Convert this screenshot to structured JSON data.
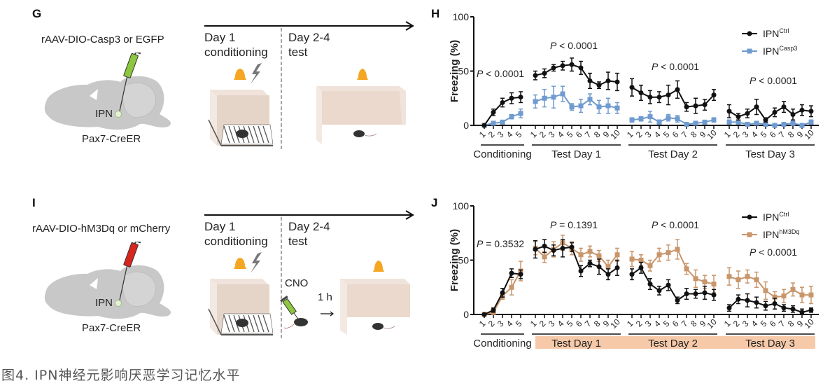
{
  "panels": {
    "G": {
      "letter": "G",
      "virus": "rAAV-DIO-Casp3 or EGFP",
      "target": "IPN",
      "mouse_line": "Pax7-CreER",
      "syringe_color": "#8dc63f",
      "day1_line1": "Day 1",
      "day1_line2": "conditioning",
      "day2_line1": "Day 2-4",
      "day2_line2": "test"
    },
    "I": {
      "letter": "I",
      "virus": "rAAV-DIO-hM3Dq or mCherry",
      "target": "IPN",
      "mouse_line": "Pax7-CreER",
      "syringe_color": "#d7261e",
      "day1_line1": "Day 1",
      "day1_line2": "conditioning",
      "day2_line1": "Day 2-4",
      "day2_line2": "test",
      "drug": "CNO",
      "delay": "1 h"
    },
    "H": {
      "letter": "H"
    },
    "J": {
      "letter": "J"
    }
  },
  "chart_data": [
    {
      "id": "H",
      "type": "line",
      "ylabel": "Freezing (%)",
      "ylim": [
        0,
        100
      ],
      "yticks": [
        "0",
        "50",
        "100"
      ],
      "groups": [
        {
          "name": "Conditioning",
          "ticks": [
            "1",
            "2",
            "3",
            "4",
            "5"
          ],
          "p": "P < 0.0001"
        },
        {
          "name": "Test Day 1",
          "ticks": [
            "1",
            "2",
            "3",
            "4",
            "5",
            "6",
            "7",
            "8",
            "9",
            "10"
          ],
          "p": "P < 0.0001"
        },
        {
          "name": "Test Day 2",
          "ticks": [
            "1",
            "2",
            "3",
            "4",
            "5",
            "6",
            "7",
            "8",
            "9",
            "10"
          ],
          "p": "P < 0.0001"
        },
        {
          "name": "Test Day 3",
          "ticks": [
            "1",
            "2",
            "3",
            "4",
            "5",
            "6",
            "7",
            "8",
            "9",
            "10"
          ],
          "p": "P < 0.0001"
        }
      ],
      "highlight_test_days": false,
      "legend": {
        "position": "top-right"
      },
      "series": [
        {
          "name": "IPN",
          "sup": "Ctrl",
          "color": "#111111",
          "marker": "circle",
          "values": [
            [
              0,
              12,
              21,
              25,
              26
            ],
            [
              46,
              48,
              53,
              55,
              56,
              53,
              41,
              37,
              41,
              40
            ],
            [
              35,
              30,
              26,
              26,
              28,
              33,
              17,
              18,
              19,
              28
            ],
            [
              13,
              8,
              11,
              17,
              5,
              12,
              17,
              10,
              14,
              13
            ]
          ],
          "errors": [
            [
              0,
              3,
              4,
              5,
              5
            ],
            [
              4,
              4,
              3,
              4,
              6,
              6,
              7,
              3,
              8,
              8
            ],
            [
              8,
              7,
              6,
              5,
              9,
              8,
              4,
              7,
              5,
              5
            ],
            [
              6,
              3,
              4,
              7,
              2,
              4,
              5,
              5,
              5,
              5
            ]
          ]
        },
        {
          "name": "IPN",
          "sup": "Casp3",
          "color": "#6f9bcf",
          "marker": "square",
          "values": [
            [
              0,
              2,
              3,
              8,
              11
            ],
            [
              22,
              25,
              26,
              29,
              17,
              18,
              24,
              17,
              18,
              16
            ],
            [
              5,
              6,
              8,
              3,
              7,
              6,
              1,
              2,
              3,
              5
            ],
            [
              3,
              3,
              1,
              2,
              1,
              0,
              1,
              2,
              0,
              3
            ]
          ],
          "errors": [
            [
              0,
              1,
              1,
              2,
              4
            ],
            [
              6,
              8,
              10,
              7,
              3,
              6,
              5,
              6,
              7,
              5
            ],
            [
              2,
              2,
              5,
              2,
              3,
              3,
              1,
              1,
              1,
              2
            ],
            [
              2,
              2,
              1,
              1,
              1,
              1,
              1,
              2,
              1,
              2
            ]
          ]
        }
      ]
    },
    {
      "id": "J",
      "type": "line",
      "ylabel": "Freezing (%)",
      "ylim": [
        0,
        100
      ],
      "yticks": [
        "0",
        "50",
        "100"
      ],
      "groups": [
        {
          "name": "Conditioning",
          "ticks": [
            "1",
            "2",
            "3",
            "4",
            "5"
          ],
          "p": "P = 0.3532"
        },
        {
          "name": "Test Day 1",
          "ticks": [
            "1",
            "2",
            "3",
            "4",
            "5",
            "6",
            "7",
            "8",
            "9",
            "10"
          ],
          "p": "P = 0.1391"
        },
        {
          "name": "Test Day 2",
          "ticks": [
            "1",
            "2",
            "3",
            "4",
            "5",
            "6",
            "7",
            "8",
            "9",
            "10"
          ],
          "p": "P < 0.0001"
        },
        {
          "name": "Test Day 3",
          "ticks": [
            "1",
            "2",
            "3",
            "4",
            "5",
            "6",
            "7",
            "8",
            "9",
            "10"
          ],
          "p": "P < 0.0001"
        }
      ],
      "highlight_test_days": true,
      "highlight_color": "#f6c9a8",
      "legend": {
        "position": "top-right"
      },
      "series": [
        {
          "name": "IPN",
          "sup": "Ctrl",
          "color": "#111111",
          "marker": "circle",
          "values": [
            [
              0,
              4,
              20,
              38,
              37
            ],
            [
              60,
              63,
              59,
              61,
              62,
              40,
              47,
              44,
              37,
              43
            ],
            [
              37,
              43,
              28,
              22,
              27,
              13,
              19,
              19,
              20,
              18
            ],
            [
              6,
              14,
              13,
              11,
              8,
              10,
              6,
              5,
              2,
              4
            ]
          ],
          "errors": [
            [
              0,
              2,
              4,
              4,
              4
            ],
            [
              8,
              6,
              5,
              8,
              4,
              5,
              3,
              7,
              5,
              7
            ],
            [
              5,
              5,
              5,
              4,
              5,
              3,
              5,
              4,
              6,
              5
            ],
            [
              3,
              4,
              6,
              5,
              4,
              5,
              3,
              3,
              3,
              2
            ]
          ]
        },
        {
          "name": "IPN",
          "sup": "hM3Dq",
          "color": "#c9966b",
          "marker": "square",
          "values": [
            [
              0,
              2,
              17,
              25,
              40
            ],
            [
              61,
              53,
              60,
              66,
              61,
              55,
              58,
              54,
              44,
              55
            ],
            [
              51,
              50,
              45,
              55,
              57,
              60,
              42,
              33,
              30,
              28
            ],
            [
              35,
              32,
              35,
              32,
              22,
              16,
              17,
              23,
              18,
              18
            ]
          ],
          "errors": [
            [
              0,
              2,
              3,
              7,
              9
            ],
            [
              6,
              5,
              7,
              7,
              6,
              6,
              5,
              5,
              6,
              6
            ],
            [
              7,
              5,
              5,
              6,
              7,
              9,
              5,
              8,
              6,
              8
            ],
            [
              8,
              8,
              6,
              7,
              8,
              5,
              6,
              6,
              7,
              8
            ]
          ]
        }
      ]
    }
  ],
  "caption": "图4. IPN神经元影响厌恶学习记忆水平"
}
